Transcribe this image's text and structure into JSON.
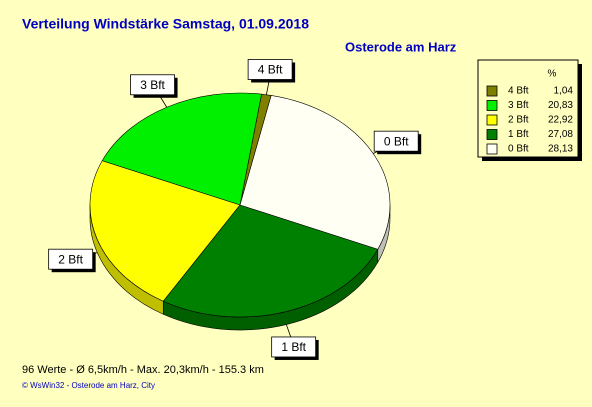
{
  "chart_data": {
    "type": "pie",
    "title": "Verteilung Windstärke  Samstag, 01.09.2018",
    "subtitle": "Osterode am Harz",
    "categories": [
      "4 Bft",
      "3 Bft",
      "2 Bft",
      "1 Bft",
      "0 Bft"
    ],
    "values": [
      1.04,
      20.83,
      22.92,
      27.08,
      28.13
    ],
    "value_labels": [
      "1,04",
      "20,83",
      "22,92",
      "27,08",
      "28,13"
    ],
    "colors": [
      "#808000",
      "#00f000",
      "#ffff00",
      "#008000",
      "#fffff4"
    ],
    "legend_header": "%",
    "legend": "right",
    "footer": "96 Werte   -   Ø 6,5km/h  -  Max. 20,3km/h   -   155.3 km",
    "credit": "© WsWin32  -  Osterode am Harz, City"
  }
}
